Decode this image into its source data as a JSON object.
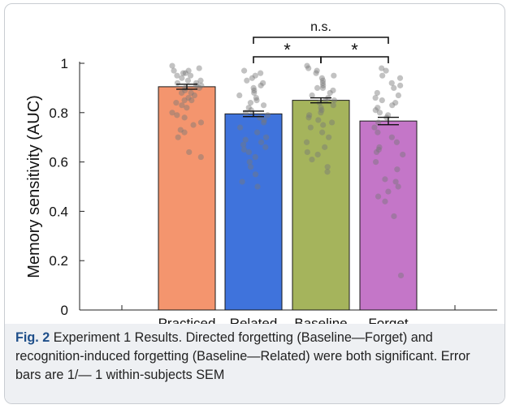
{
  "figure": {
    "caption_label": "Fig. 2",
    "caption_text": "Experiment 1 Results. Directed forgetting (Baseline—Forget) and recognition-induced forgetting (Baseline—Related) were both significant. Error bars are 1/— 1 within-subjects SEM"
  },
  "chart_data": {
    "type": "bar",
    "ylabel": "Memory sensitivity (AUC)",
    "ylim": [
      0,
      1
    ],
    "yticks": [
      "0",
      "0.2",
      "0.4",
      "0.6",
      "0.8",
      "1"
    ],
    "ytick_values": [
      0,
      0.2,
      0.4,
      0.6,
      0.8,
      1
    ],
    "grid": false,
    "categories": [
      "Practiced",
      "Related",
      "Baseline",
      "Forget"
    ],
    "values": [
      0.905,
      0.795,
      0.85,
      0.766
    ],
    "sem": [
      0.01,
      0.011,
      0.01,
      0.015
    ],
    "colors": [
      "#f4956e",
      "#3f73dc",
      "#a5b45c",
      "#c476c8"
    ],
    "points": [
      [
        0.99,
        0.98,
        0.97,
        0.97,
        0.96,
        0.96,
        0.95,
        0.95,
        0.94,
        0.93,
        0.93,
        0.92,
        0.92,
        0.91,
        0.91,
        0.9,
        0.9,
        0.89,
        0.88,
        0.88,
        0.87,
        0.86,
        0.85,
        0.85,
        0.84,
        0.83,
        0.82,
        0.8,
        0.79,
        0.78,
        0.76,
        0.75,
        0.73,
        0.72,
        0.7,
        0.64,
        0.62
      ],
      [
        0.97,
        0.96,
        0.95,
        0.94,
        0.93,
        0.92,
        0.91,
        0.9,
        0.89,
        0.88,
        0.87,
        0.86,
        0.85,
        0.84,
        0.83,
        0.82,
        0.81,
        0.8,
        0.79,
        0.78,
        0.77,
        0.76,
        0.74,
        0.72,
        0.7,
        0.69,
        0.68,
        0.67,
        0.66,
        0.65,
        0.64,
        0.62,
        0.6,
        0.58,
        0.55,
        0.52,
        0.5
      ],
      [
        0.99,
        0.98,
        0.97,
        0.96,
        0.95,
        0.94,
        0.93,
        0.92,
        0.91,
        0.9,
        0.9,
        0.89,
        0.88,
        0.87,
        0.86,
        0.85,
        0.85,
        0.84,
        0.83,
        0.82,
        0.81,
        0.8,
        0.79,
        0.78,
        0.77,
        0.76,
        0.75,
        0.74,
        0.72,
        0.7,
        0.68,
        0.66,
        0.64,
        0.63,
        0.61,
        0.58,
        0.56
      ],
      [
        0.98,
        0.97,
        0.95,
        0.94,
        0.92,
        0.91,
        0.9,
        0.88,
        0.87,
        0.86,
        0.85,
        0.84,
        0.83,
        0.82,
        0.81,
        0.8,
        0.79,
        0.78,
        0.76,
        0.74,
        0.72,
        0.7,
        0.68,
        0.66,
        0.65,
        0.64,
        0.63,
        0.6,
        0.57,
        0.53,
        0.52,
        0.5,
        0.48,
        0.46,
        0.44,
        0.38,
        0.14
      ]
    ],
    "comparisons": [
      {
        "from": 1,
        "to": 2,
        "label": "*"
      },
      {
        "from": 2,
        "to": 3,
        "label": "*"
      },
      {
        "from": 1,
        "to": 3,
        "label": "n.s."
      }
    ]
  }
}
